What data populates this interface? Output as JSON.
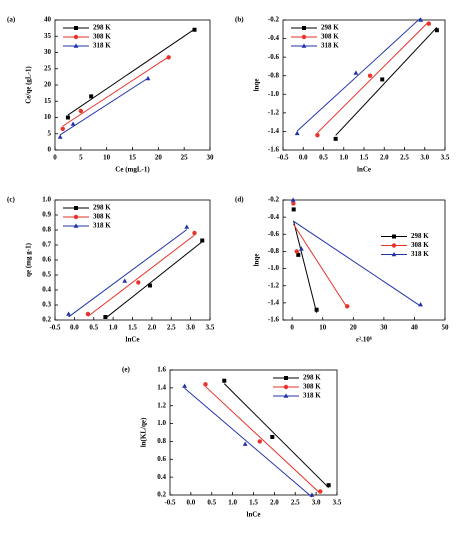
{
  "chart_data": [
    {
      "type": "scatter",
      "label": "(a)",
      "xlabel": "Ce (mgL-1)",
      "ylabel": "Ce/qe (gL-1)",
      "xlim": [
        0,
        30
      ],
      "xticks": [
        0,
        5,
        10,
        15,
        20,
        25,
        30
      ],
      "ylim": [
        0,
        40
      ],
      "yticks": [
        0,
        5,
        10,
        15,
        20,
        25,
        30,
        35,
        40
      ],
      "legend": "upper left",
      "trendline": true,
      "series": [
        {
          "name": "298 K",
          "color": "#000000",
          "marker": "square",
          "x": [
            2.5,
            7,
            27
          ],
          "values": [
            10,
            16.5,
            37
          ]
        },
        {
          "name": "308 K",
          "color": "#e8322a",
          "marker": "circle",
          "x": [
            1.5,
            5,
            22
          ],
          "values": [
            6.5,
            12,
            28.5
          ]
        },
        {
          "name": "318 K",
          "color": "#2233aa",
          "marker": "triangle",
          "x": [
            1,
            3.5,
            18
          ],
          "values": [
            4,
            8,
            22
          ]
        }
      ]
    },
    {
      "type": "scatter",
      "label": "(b)",
      "xlabel": "lnCe",
      "ylabel": "lnqe",
      "xlim": [
        -0.5,
        3.5
      ],
      "xticks": [
        -0.5,
        {
          "value": 0,
          "label": "0.0"
        },
        0.5,
        {
          "value": 1,
          "label": "1.0"
        },
        1.5,
        {
          "value": 2,
          "label": "2.0"
        },
        2.5,
        {
          "value": 3,
          "label": "3.0"
        },
        3.5
      ],
      "ylim": [
        -1.6,
        -0.2
      ],
      "yticks": [
        -1.6,
        -1.4,
        -1.2,
        {
          "value": -1,
          "label": "-1.0"
        },
        -0.8,
        -0.6,
        -0.4,
        -0.2
      ],
      "legend": "upper left",
      "trendline": true,
      "series": [
        {
          "name": "298 K",
          "color": "#000000",
          "marker": "square",
          "x": [
            0.8,
            1.95,
            3.3
          ],
          "values": [
            -1.48,
            -0.84,
            -0.31
          ]
        },
        {
          "name": "308 K",
          "color": "#e8322a",
          "marker": "circle",
          "x": [
            0.35,
            1.65,
            3.1
          ],
          "values": [
            -1.44,
            -0.8,
            -0.24
          ]
        },
        {
          "name": "318 K",
          "color": "#2233aa",
          "marker": "triangle",
          "x": [
            -0.15,
            1.3,
            2.9
          ],
          "values": [
            -1.42,
            -0.77,
            -0.2
          ]
        }
      ]
    },
    {
      "type": "scatter",
      "label": "(c)",
      "xlabel": "lnCe",
      "ylabel": "qe (mg g-1)",
      "xlim": [
        -0.5,
        3.5
      ],
      "xticks": [
        -0.5,
        {
          "value": 0,
          "label": "0.0"
        },
        0.5,
        {
          "value": 1,
          "label": "1.0"
        },
        1.5,
        {
          "value": 2,
          "label": "2.0"
        },
        2.5,
        {
          "value": 3,
          "label": "3.0"
        },
        3.5
      ],
      "ylim": [
        0.2,
        1.0
      ],
      "yticks": [
        0.2,
        0.3,
        0.4,
        0.5,
        0.6,
        0.7,
        0.8,
        0.9,
        {
          "value": 1,
          "label": "1.0"
        }
      ],
      "legend": "upper left",
      "trendline": true,
      "series": [
        {
          "name": "298 K",
          "color": "#000000",
          "marker": "square",
          "x": [
            0.8,
            1.95,
            3.3
          ],
          "values": [
            0.22,
            0.43,
            0.73
          ]
        },
        {
          "name": "308 K",
          "color": "#e8322a",
          "marker": "circle",
          "x": [
            0.35,
            1.65,
            3.1
          ],
          "values": [
            0.24,
            0.45,
            0.78
          ]
        },
        {
          "name": "318 K",
          "color": "#2233aa",
          "marker": "triangle",
          "x": [
            -0.15,
            1.3,
            2.9
          ],
          "values": [
            0.24,
            0.46,
            0.82
          ]
        }
      ]
    },
    {
      "type": "scatter",
      "label": "(d)",
      "xlabel": "ε².10⁶",
      "ylabel": "lnqe",
      "xlim": [
        -3,
        50
      ],
      "xticks": [
        0,
        10,
        20,
        30,
        40,
        50
      ],
      "ylim": [
        -1.6,
        -0.2
      ],
      "yticks": [
        -1.6,
        -1.4,
        -1.2,
        {
          "value": -1,
          "label": "-1.0"
        },
        -0.8,
        -0.6,
        -0.4,
        -0.2
      ],
      "legend": "center right",
      "trendline": true,
      "series": [
        {
          "name": "298 K",
          "color": "#000000",
          "marker": "square",
          "x": [
            0.5,
            2,
            8
          ],
          "values": [
            -0.31,
            -0.84,
            -1.48
          ]
        },
        {
          "name": "308 K",
          "color": "#e8322a",
          "marker": "circle",
          "x": [
            0.4,
            1.5,
            18
          ],
          "values": [
            -0.24,
            -0.8,
            -1.44
          ]
        },
        {
          "name": "318 K",
          "color": "#2233aa",
          "marker": "triangle",
          "x": [
            0.3,
            3,
            42
          ],
          "values": [
            -0.2,
            -0.77,
            -1.42
          ]
        }
      ]
    },
    {
      "type": "scatter",
      "label": "(e)",
      "xlabel": "lnCe",
      "ylabel": "ln(KL/qe)",
      "xlim": [
        -0.5,
        3.5
      ],
      "xticks": [
        -0.5,
        {
          "value": 0,
          "label": "0.0"
        },
        0.5,
        {
          "value": 1,
          "label": "1.0"
        },
        1.5,
        {
          "value": 2,
          "label": "2.0"
        },
        2.5,
        {
          "value": 3,
          "label": "3.0"
        },
        3.5
      ],
      "ylim": [
        0.2,
        1.6
      ],
      "yticks": [
        0.2,
        0.4,
        0.6,
        0.8,
        {
          "value": 1,
          "label": "1.0"
        },
        1.2,
        1.4,
        1.6
      ],
      "legend": "upper right",
      "trendline": true,
      "series": [
        {
          "name": "298 K",
          "color": "#000000",
          "marker": "square",
          "x": [
            0.8,
            1.95,
            3.3
          ],
          "values": [
            1.48,
            0.85,
            0.31
          ]
        },
        {
          "name": "308 K",
          "color": "#e8322a",
          "marker": "circle",
          "x": [
            0.35,
            1.65,
            3.1
          ],
          "values": [
            1.44,
            0.8,
            0.24
          ]
        },
        {
          "name": "318 K",
          "color": "#2233aa",
          "marker": "triangle",
          "x": [
            -0.15,
            1.3,
            2.9
          ],
          "values": [
            1.42,
            0.77,
            0.2
          ]
        }
      ]
    }
  ]
}
